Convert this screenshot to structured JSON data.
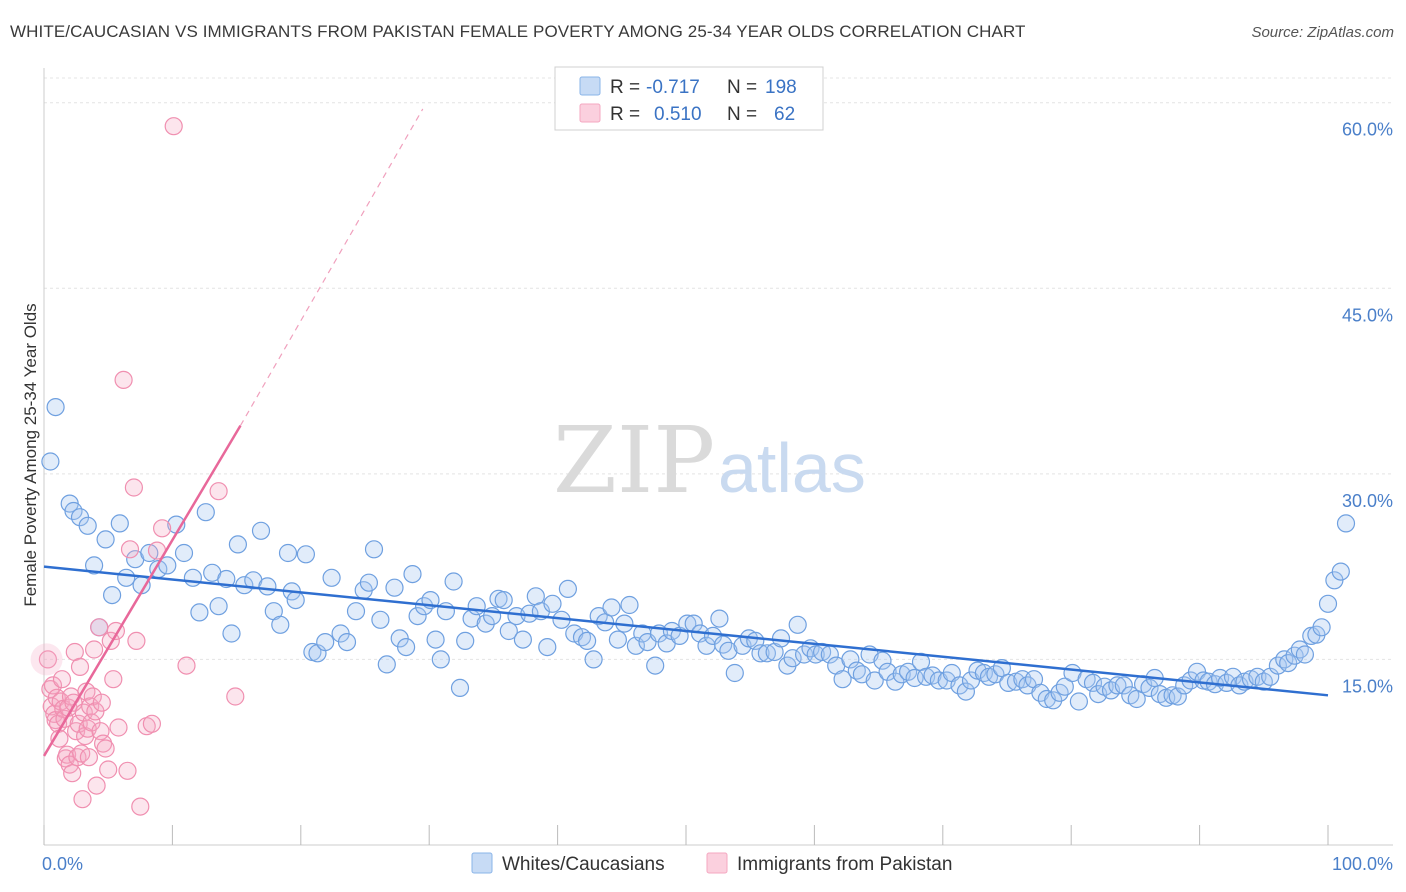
{
  "title": "WHITE/CAUCASIAN VS IMMIGRANTS FROM PAKISTAN FEMALE POVERTY AMONG 25-34 YEAR OLDS CORRELATION CHART",
  "source": "Source: ZipAtlas.com",
  "watermark": {
    "zip": "ZIP",
    "atlas": "atlas"
  },
  "legend": {
    "r_label": "R =",
    "n_label": "N =",
    "rows": [
      {
        "r": "-0.717",
        "n": "198",
        "color": "#8ab4e8"
      },
      {
        "r": "0.510",
        "n": "62",
        "color": "#f4a7c0"
      }
    ]
  },
  "chart_data": {
    "type": "scatter",
    "title": "WHITE/CAUCASIAN VS IMMIGRANTS FROM PAKISTAN FEMALE POVERTY AMONG 25-34 YEAR OLDS CORRELATION CHART",
    "xlabel": "",
    "ylabel": "Female Poverty Among 25-34 Year Olds",
    "xlim": [
      0,
      100
    ],
    "ylim": [
      0,
      62
    ],
    "x_tick_labels": [
      "0.0%",
      "100.0%"
    ],
    "y_ticks": [
      15,
      30,
      45,
      60
    ],
    "y_tick_labels": [
      "15.0%",
      "30.0%",
      "45.0%",
      "60.0%"
    ],
    "grid": true,
    "legend_position": "top-center",
    "series": [
      {
        "name": "Whites/Caucasians",
        "color": "#6fa0e0",
        "trend": {
          "x": [
            0,
            100
          ],
          "y": [
            22.5,
            12.1
          ]
        },
        "points": [
          [
            0.5,
            31.0
          ],
          [
            0.9,
            35.4
          ],
          [
            2.0,
            27.6
          ],
          [
            2.3,
            27.0
          ],
          [
            2.8,
            26.5
          ],
          [
            3.4,
            25.8
          ],
          [
            3.9,
            22.6
          ],
          [
            4.3,
            17.6
          ],
          [
            4.8,
            24.7
          ],
          [
            5.3,
            20.2
          ],
          [
            5.9,
            26.0
          ],
          [
            6.4,
            21.6
          ],
          [
            7.1,
            23.1
          ],
          [
            7.6,
            21.0
          ],
          [
            8.2,
            23.6
          ],
          [
            8.9,
            22.3
          ],
          [
            9.6,
            22.6
          ],
          [
            10.3,
            25.9
          ],
          [
            10.9,
            23.6
          ],
          [
            11.6,
            21.6
          ],
          [
            12.1,
            18.8
          ],
          [
            12.6,
            26.9
          ],
          [
            13.1,
            22.0
          ],
          [
            13.6,
            19.3
          ],
          [
            14.2,
            21.5
          ],
          [
            14.6,
            17.1
          ],
          [
            15.1,
            24.3
          ],
          [
            15.6,
            21.0
          ],
          [
            16.3,
            21.4
          ],
          [
            16.9,
            25.4
          ],
          [
            17.4,
            20.9
          ],
          [
            17.9,
            18.9
          ],
          [
            18.4,
            17.8
          ],
          [
            19.0,
            23.6
          ],
          [
            19.3,
            20.5
          ],
          [
            19.6,
            19.8
          ],
          [
            20.4,
            23.5
          ],
          [
            20.9,
            15.6
          ],
          [
            21.3,
            15.5
          ],
          [
            21.9,
            16.4
          ],
          [
            22.4,
            21.6
          ],
          [
            23.1,
            17.1
          ],
          [
            23.6,
            16.4
          ],
          [
            24.3,
            18.9
          ],
          [
            24.9,
            20.6
          ],
          [
            25.3,
            21.2
          ],
          [
            25.7,
            23.9
          ],
          [
            26.2,
            18.2
          ],
          [
            26.7,
            14.6
          ],
          [
            27.3,
            20.8
          ],
          [
            27.7,
            16.7
          ],
          [
            28.2,
            16.0
          ],
          [
            28.7,
            21.9
          ],
          [
            29.1,
            18.5
          ],
          [
            29.6,
            19.3
          ],
          [
            30.1,
            19.8
          ],
          [
            30.5,
            16.6
          ],
          [
            30.9,
            15.0
          ],
          [
            31.3,
            18.9
          ],
          [
            31.9,
            21.3
          ],
          [
            32.4,
            12.7
          ],
          [
            32.8,
            16.5
          ],
          [
            33.3,
            18.3
          ],
          [
            33.7,
            19.3
          ],
          [
            34.4,
            17.9
          ],
          [
            34.9,
            18.5
          ],
          [
            35.4,
            19.9
          ],
          [
            35.8,
            19.8
          ],
          [
            36.2,
            17.3
          ],
          [
            36.8,
            18.5
          ],
          [
            37.3,
            16.6
          ],
          [
            37.8,
            18.7
          ],
          [
            38.3,
            20.1
          ],
          [
            38.7,
            18.9
          ],
          [
            39.2,
            16.0
          ],
          [
            39.6,
            19.5
          ],
          [
            40.3,
            18.2
          ],
          [
            40.8,
            20.7
          ],
          [
            41.3,
            17.1
          ],
          [
            41.9,
            16.8
          ],
          [
            42.3,
            16.5
          ],
          [
            42.8,
            15.0
          ],
          [
            43.2,
            18.5
          ],
          [
            43.7,
            18.0
          ],
          [
            44.2,
            19.2
          ],
          [
            44.7,
            16.6
          ],
          [
            45.2,
            17.9
          ],
          [
            45.6,
            19.4
          ],
          [
            46.1,
            16.1
          ],
          [
            46.6,
            17.1
          ],
          [
            47.0,
            16.4
          ],
          [
            47.6,
            14.5
          ],
          [
            47.9,
            17.1
          ],
          [
            48.5,
            16.3
          ],
          [
            48.9,
            17.3
          ],
          [
            49.5,
            16.9
          ],
          [
            50.1,
            17.9
          ],
          [
            50.6,
            17.9
          ],
          [
            51.1,
            17.1
          ],
          [
            51.6,
            16.1
          ],
          [
            52.1,
            16.9
          ],
          [
            52.6,
            18.3
          ],
          [
            52.9,
            16.2
          ],
          [
            53.3,
            15.7
          ],
          [
            53.8,
            13.9
          ],
          [
            54.4,
            16.1
          ],
          [
            54.9,
            16.7
          ],
          [
            55.4,
            16.5
          ],
          [
            55.8,
            15.5
          ],
          [
            56.3,
            15.5
          ],
          [
            56.9,
            15.6
          ],
          [
            57.4,
            16.7
          ],
          [
            57.9,
            14.5
          ],
          [
            58.3,
            15.1
          ],
          [
            58.7,
            17.8
          ],
          [
            59.2,
            15.4
          ],
          [
            59.7,
            15.9
          ],
          [
            60.1,
            15.4
          ],
          [
            60.6,
            15.6
          ],
          [
            61.2,
            15.4
          ],
          [
            61.7,
            14.5
          ],
          [
            62.2,
            13.4
          ],
          [
            62.8,
            15.0
          ],
          [
            63.3,
            14.1
          ],
          [
            63.7,
            13.8
          ],
          [
            64.3,
            15.4
          ],
          [
            64.7,
            13.3
          ],
          [
            65.3,
            14.9
          ],
          [
            65.7,
            14.0
          ],
          [
            66.3,
            13.2
          ],
          [
            66.8,
            13.8
          ],
          [
            67.3,
            14.0
          ],
          [
            67.8,
            13.5
          ],
          [
            68.3,
            14.8
          ],
          [
            68.7,
            13.6
          ],
          [
            69.2,
            13.7
          ],
          [
            69.7,
            13.3
          ],
          [
            70.3,
            13.3
          ],
          [
            70.7,
            13.9
          ],
          [
            71.3,
            12.9
          ],
          [
            71.8,
            12.4
          ],
          [
            72.2,
            13.3
          ],
          [
            72.7,
            14.1
          ],
          [
            73.2,
            13.9
          ],
          [
            73.6,
            13.6
          ],
          [
            74.1,
            13.8
          ],
          [
            74.6,
            14.3
          ],
          [
            75.1,
            13.1
          ],
          [
            75.7,
            13.2
          ],
          [
            76.2,
            13.4
          ],
          [
            76.6,
            12.9
          ],
          [
            77.1,
            13.4
          ],
          [
            77.6,
            12.3
          ],
          [
            78.1,
            11.8
          ],
          [
            78.6,
            11.7
          ],
          [
            79.1,
            12.3
          ],
          [
            79.5,
            12.8
          ],
          [
            80.1,
            13.9
          ],
          [
            80.6,
            11.6
          ],
          [
            81.2,
            13.4
          ],
          [
            81.7,
            13.1
          ],
          [
            82.1,
            12.2
          ],
          [
            82.6,
            12.8
          ],
          [
            83.1,
            12.5
          ],
          [
            83.6,
            12.9
          ],
          [
            84.1,
            12.9
          ],
          [
            84.6,
            12.1
          ],
          [
            85.1,
            11.8
          ],
          [
            85.6,
            13.0
          ],
          [
            86.1,
            12.7
          ],
          [
            86.5,
            13.5
          ],
          [
            86.9,
            12.2
          ],
          [
            87.4,
            11.9
          ],
          [
            87.9,
            12.1
          ],
          [
            88.3,
            12.0
          ],
          [
            88.8,
            12.9
          ],
          [
            89.3,
            13.3
          ],
          [
            89.8,
            14.0
          ],
          [
            90.3,
            13.3
          ],
          [
            90.7,
            13.2
          ],
          [
            91.2,
            13.0
          ],
          [
            91.6,
            13.5
          ],
          [
            92.1,
            13.1
          ],
          [
            92.6,
            13.6
          ],
          [
            93.1,
            12.9
          ],
          [
            93.5,
            13.2
          ],
          [
            94.0,
            13.4
          ],
          [
            94.5,
            13.6
          ],
          [
            95.0,
            13.2
          ],
          [
            95.5,
            13.6
          ],
          [
            96.1,
            14.5
          ],
          [
            96.6,
            15.0
          ],
          [
            96.9,
            14.7
          ],
          [
            97.4,
            15.3
          ],
          [
            97.8,
            15.8
          ],
          [
            98.2,
            15.4
          ],
          [
            98.7,
            16.9
          ],
          [
            99.1,
            17.0
          ],
          [
            99.5,
            17.6
          ],
          [
            100.0,
            19.5
          ],
          [
            100.5,
            21.4
          ],
          [
            101.0,
            22.1
          ],
          [
            101.4,
            26.0
          ]
        ]
      },
      {
        "name": "Immigrants from Pakistan",
        "color": "#f08fb0",
        "trend": {
          "x": [
            0,
            15.3
          ],
          "y": [
            7.2,
            33.9
          ]
        },
        "trend_dashed": {
          "x": [
            15.3,
            29.5
          ],
          "y": [
            33.9,
            59.5
          ]
        },
        "points": [
          [
            0.3,
            15.0
          ],
          [
            0.5,
            12.6
          ],
          [
            0.6,
            11.2
          ],
          [
            0.7,
            12.9
          ],
          [
            0.8,
            10.6
          ],
          [
            0.9,
            10.1
          ],
          [
            1.0,
            11.9
          ],
          [
            1.1,
            9.8
          ],
          [
            1.2,
            8.6
          ],
          [
            1.3,
            11.6
          ],
          [
            1.4,
            13.4
          ],
          [
            1.5,
            11.0
          ],
          [
            1.6,
            10.2
          ],
          [
            1.7,
            7.0
          ],
          [
            1.8,
            7.3
          ],
          [
            1.9,
            11.1
          ],
          [
            2.0,
            6.5
          ],
          [
            2.1,
            12.0
          ],
          [
            2.2,
            5.8
          ],
          [
            2.3,
            11.5
          ],
          [
            2.4,
            15.6
          ],
          [
            2.5,
            9.2
          ],
          [
            2.6,
            7.1
          ],
          [
            2.7,
            9.8
          ],
          [
            2.8,
            14.4
          ],
          [
            2.9,
            7.4
          ],
          [
            3.0,
            3.7
          ],
          [
            3.1,
            10.7
          ],
          [
            3.2,
            8.8
          ],
          [
            3.3,
            12.4
          ],
          [
            3.4,
            9.4
          ],
          [
            3.5,
            7.1
          ],
          [
            3.6,
            11.2
          ],
          [
            3.7,
            9.9
          ],
          [
            3.8,
            12.0
          ],
          [
            3.9,
            15.8
          ],
          [
            4.0,
            10.8
          ],
          [
            4.1,
            4.8
          ],
          [
            4.3,
            17.6
          ],
          [
            4.4,
            9.2
          ],
          [
            4.5,
            11.5
          ],
          [
            4.6,
            8.2
          ],
          [
            4.8,
            7.8
          ],
          [
            5.0,
            6.1
          ],
          [
            5.2,
            16.5
          ],
          [
            5.4,
            13.4
          ],
          [
            5.6,
            17.3
          ],
          [
            5.8,
            9.5
          ],
          [
            6.2,
            37.6
          ],
          [
            6.5,
            6.0
          ],
          [
            6.7,
            23.9
          ],
          [
            7.0,
            28.9
          ],
          [
            7.2,
            16.5
          ],
          [
            7.5,
            3.1
          ],
          [
            8.0,
            9.6
          ],
          [
            8.4,
            9.8
          ],
          [
            8.8,
            23.8
          ],
          [
            9.2,
            25.6
          ],
          [
            10.1,
            58.1
          ],
          [
            11.1,
            14.5
          ],
          [
            13.6,
            28.6
          ],
          [
            14.9,
            12.0
          ]
        ]
      }
    ]
  },
  "bottom_legend": [
    {
      "label": "Whites/Caucasians",
      "color": "#8ab4e8"
    },
    {
      "label": "Immigrants from Pakistan",
      "color": "#f4a7c0"
    }
  ]
}
